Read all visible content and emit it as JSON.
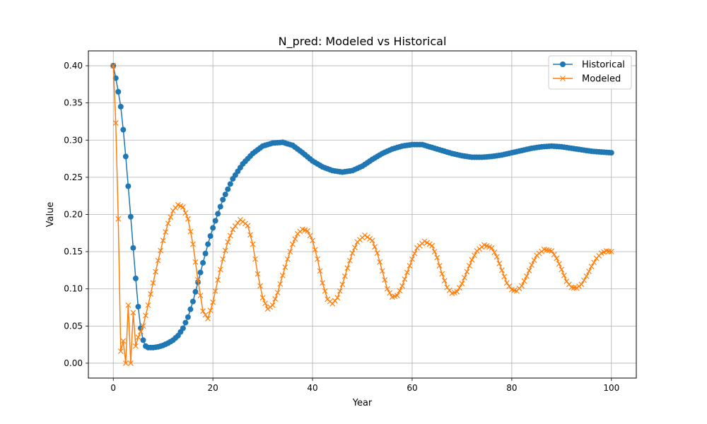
{
  "chart_data": {
    "type": "line",
    "title": "N_pred: Modeled vs Historical",
    "xlabel": "Year",
    "ylabel": "Value",
    "xlim": [
      -5,
      105
    ],
    "ylim": [
      -0.02,
      0.42
    ],
    "xticks": [
      0,
      20,
      40,
      60,
      80,
      100
    ],
    "yticks": [
      0.0,
      0.05,
      0.1,
      0.15,
      0.2,
      0.25,
      0.3,
      0.35,
      0.4
    ],
    "grid": true,
    "legend_position": "top-right",
    "x": {
      "start": 0,
      "end": 100,
      "step": 0.5
    },
    "series": [
      {
        "name": "Historical",
        "color": "#1f77b4",
        "marker": "circle",
        "keypoints": [
          [
            0,
            0.4
          ],
          [
            0.75,
            0.375
          ],
          [
            1.5,
            0.345
          ],
          [
            2.0,
            0.314
          ],
          [
            2.5,
            0.278
          ],
          [
            3.0,
            0.238
          ],
          [
            3.5,
            0.197
          ],
          [
            4.0,
            0.155
          ],
          [
            4.5,
            0.114
          ],
          [
            5.0,
            0.076
          ],
          [
            5.5,
            0.047
          ],
          [
            6.0,
            0.031
          ],
          [
            6.5,
            0.023
          ],
          [
            7.0,
            0.021
          ],
          [
            8.0,
            0.021
          ],
          [
            9.0,
            0.022
          ],
          [
            10.0,
            0.024
          ],
          [
            11.0,
            0.027
          ],
          [
            12.0,
            0.031
          ],
          [
            13.0,
            0.037
          ],
          [
            14.0,
            0.047
          ],
          [
            15.0,
            0.062
          ],
          [
            16.0,
            0.083
          ],
          [
            17.0,
            0.109
          ],
          [
            18.0,
            0.135
          ],
          [
            19.0,
            0.16
          ],
          [
            20.0,
            0.182
          ],
          [
            22.0,
            0.22
          ],
          [
            24.0,
            0.248
          ],
          [
            26.0,
            0.268
          ],
          [
            28.0,
            0.282
          ],
          [
            30.0,
            0.292
          ],
          [
            32.0,
            0.296
          ],
          [
            34.0,
            0.297
          ],
          [
            36.0,
            0.293
          ],
          [
            38.0,
            0.283
          ],
          [
            40.0,
            0.272
          ],
          [
            42.0,
            0.264
          ],
          [
            44.0,
            0.259
          ],
          [
            46.0,
            0.257
          ],
          [
            48.0,
            0.259
          ],
          [
            50.0,
            0.265
          ],
          [
            52.0,
            0.274
          ],
          [
            54.0,
            0.282
          ],
          [
            56.0,
            0.288
          ],
          [
            58.0,
            0.292
          ],
          [
            60.0,
            0.294
          ],
          [
            62.0,
            0.294
          ],
          [
            64.0,
            0.29
          ],
          [
            66.0,
            0.286
          ],
          [
            68.0,
            0.282
          ],
          [
            70.0,
            0.279
          ],
          [
            72.0,
            0.277
          ],
          [
            74.0,
            0.277
          ],
          [
            76.0,
            0.278
          ],
          [
            78.0,
            0.28
          ],
          [
            80.0,
            0.283
          ],
          [
            82.0,
            0.286
          ],
          [
            84.0,
            0.289
          ],
          [
            86.0,
            0.291
          ],
          [
            88.0,
            0.292
          ],
          [
            90.0,
            0.291
          ],
          [
            92.0,
            0.289
          ],
          [
            94.0,
            0.287
          ],
          [
            96.0,
            0.285
          ],
          [
            98.0,
            0.284
          ],
          [
            100.0,
            0.283
          ]
        ]
      },
      {
        "name": "Modeled",
        "color": "#ff7f0e",
        "marker": "x",
        "keypoints": [
          [
            0,
            0.4
          ],
          [
            0.5,
            0.323
          ],
          [
            1.0,
            0.194
          ],
          [
            1.5,
            0.016
          ],
          [
            2.0,
            0.03
          ],
          [
            2.5,
            0.0
          ],
          [
            3.0,
            0.078
          ],
          [
            3.5,
            0.0
          ],
          [
            4.0,
            0.068
          ],
          [
            4.5,
            0.023
          ],
          [
            5.0,
            0.035
          ],
          [
            6.0,
            0.05
          ],
          [
            7.0,
            0.078
          ],
          [
            8.0,
            0.108
          ],
          [
            9.0,
            0.138
          ],
          [
            10.0,
            0.165
          ],
          [
            11.0,
            0.188
          ],
          [
            12.0,
            0.205
          ],
          [
            13.0,
            0.213
          ],
          [
            14.0,
            0.21
          ],
          [
            15.0,
            0.194
          ],
          [
            16.0,
            0.16
          ],
          [
            17.0,
            0.112
          ],
          [
            18.0,
            0.07
          ],
          [
            19.0,
            0.06
          ],
          [
            20.0,
            0.082
          ],
          [
            21.0,
            0.112
          ],
          [
            22.0,
            0.14
          ],
          [
            23.0,
            0.163
          ],
          [
            24.0,
            0.18
          ],
          [
            25.5,
            0.193
          ],
          [
            27.0,
            0.185
          ],
          [
            28.0,
            0.16
          ],
          [
            29.0,
            0.12
          ],
          [
            30.0,
            0.088
          ],
          [
            31.0,
            0.073
          ],
          [
            32.0,
            0.078
          ],
          [
            33.0,
            0.095
          ],
          [
            34.0,
            0.118
          ],
          [
            35.0,
            0.14
          ],
          [
            36.0,
            0.16
          ],
          [
            37.0,
            0.174
          ],
          [
            38.0,
            0.18
          ],
          [
            39.0,
            0.178
          ],
          [
            40.0,
            0.165
          ],
          [
            41.0,
            0.14
          ],
          [
            42.0,
            0.108
          ],
          [
            43.0,
            0.086
          ],
          [
            44.0,
            0.08
          ],
          [
            45.0,
            0.088
          ],
          [
            46.0,
            0.106
          ],
          [
            47.0,
            0.128
          ],
          [
            48.0,
            0.148
          ],
          [
            49.0,
            0.163
          ],
          [
            50.5,
            0.172
          ],
          [
            52.0,
            0.165
          ],
          [
            53.0,
            0.148
          ],
          [
            54.0,
            0.124
          ],
          [
            55.0,
            0.1
          ],
          [
            56.0,
            0.089
          ],
          [
            57.0,
            0.091
          ],
          [
            58.0,
            0.104
          ],
          [
            59.0,
            0.122
          ],
          [
            60.0,
            0.14
          ],
          [
            61.0,
            0.155
          ],
          [
            62.5,
            0.164
          ],
          [
            64.0,
            0.158
          ],
          [
            65.0,
            0.142
          ],
          [
            66.0,
            0.12
          ],
          [
            67.0,
            0.102
          ],
          [
            68.0,
            0.094
          ],
          [
            69.0,
            0.096
          ],
          [
            70.0,
            0.107
          ],
          [
            71.0,
            0.123
          ],
          [
            72.0,
            0.139
          ],
          [
            73.0,
            0.151
          ],
          [
            74.5,
            0.159
          ],
          [
            76.0,
            0.155
          ],
          [
            77.0,
            0.143
          ],
          [
            78.0,
            0.125
          ],
          [
            79.0,
            0.108
          ],
          [
            80.0,
            0.099
          ],
          [
            81.0,
            0.097
          ],
          [
            82.0,
            0.104
          ],
          [
            83.0,
            0.117
          ],
          [
            84.0,
            0.132
          ],
          [
            85.0,
            0.145
          ],
          [
            86.5,
            0.153
          ],
          [
            88.0,
            0.151
          ],
          [
            89.0,
            0.141
          ],
          [
            90.0,
            0.126
          ],
          [
            91.0,
            0.11
          ],
          [
            92.0,
            0.102
          ],
          [
            93.0,
            0.101
          ],
          [
            94.0,
            0.106
          ],
          [
            95.0,
            0.117
          ],
          [
            96.0,
            0.13
          ],
          [
            97.0,
            0.141
          ],
          [
            98.0,
            0.148
          ],
          [
            99.0,
            0.151
          ],
          [
            100.0,
            0.15
          ]
        ]
      }
    ]
  }
}
